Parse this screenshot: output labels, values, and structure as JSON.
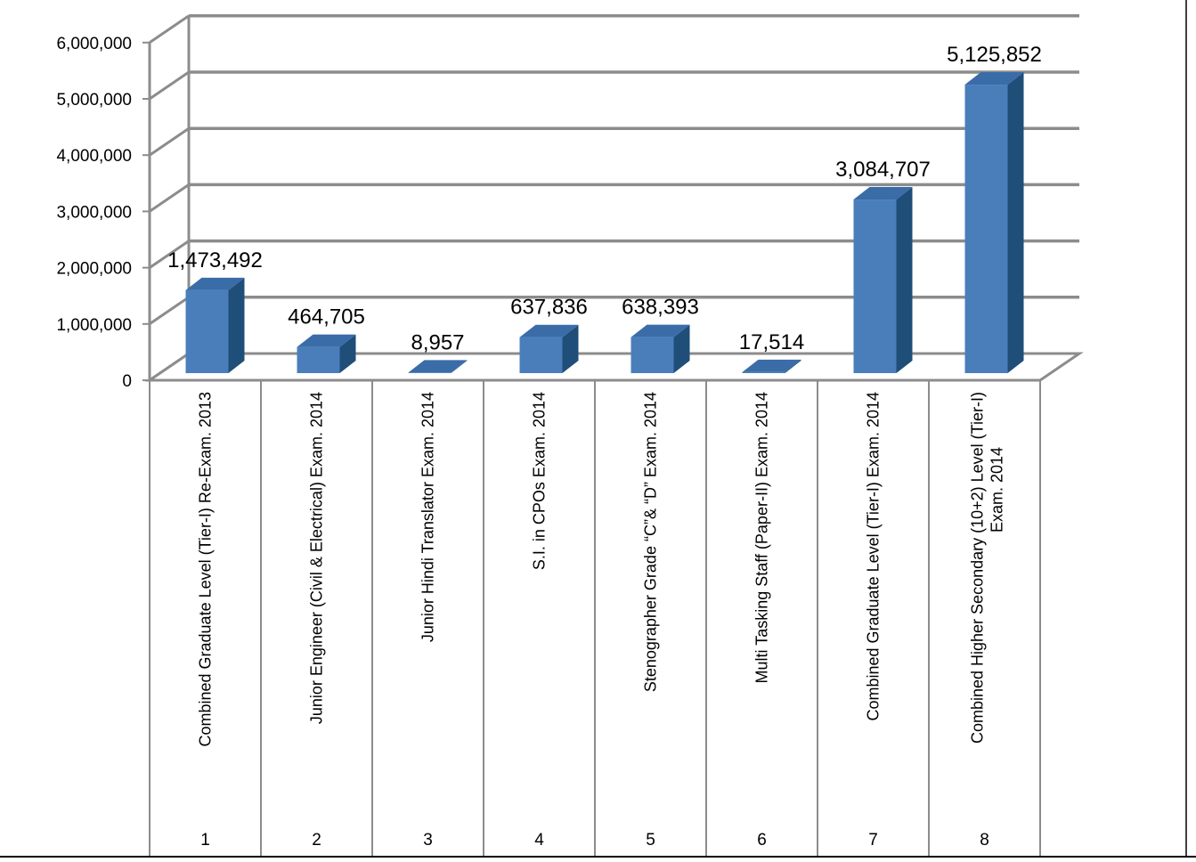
{
  "chart_data": {
    "type": "bar",
    "categories": [
      "Combined Graduate Level (Tier-I) Re-Exam. 2013",
      "Junior Engineer (Civil & Electrical) Exam. 2014",
      "Junior Hindi Translator Exam. 2014",
      "S.I. in CPOs Exam. 2014",
      "Stenographer Grade “C”& “D” Exam. 2014",
      "Multi Tasking Staff (Paper-II)  Exam. 2014",
      "Combined Graduate Level (Tier-I) Exam. 2014",
      "Combined Higher Secondary (10+2) Level (Tier-I) Exam. 2014"
    ],
    "category_numbers": [
      "1",
      "2",
      "3",
      "4",
      "5",
      "6",
      "7",
      "8"
    ],
    "values": [
      1473492,
      464705,
      8957,
      637836,
      638393,
      17514,
      3084707,
      5125852
    ],
    "data_labels": [
      "1,473,492",
      "464,705",
      "8,957",
      "637,836",
      "638,393",
      "17,514",
      "3,084,707",
      "5,125,852"
    ],
    "y_ticks": [
      "0",
      "1,000,000",
      "2,000,000",
      "3,000,000",
      "4,000,000",
      "5,000,000",
      "6,000,000"
    ],
    "ylim": [
      0,
      6000000
    ],
    "grid": true,
    "style": "3d-column",
    "bar_color": "#4a7ebb",
    "title": "",
    "xlabel": "",
    "ylabel": ""
  }
}
